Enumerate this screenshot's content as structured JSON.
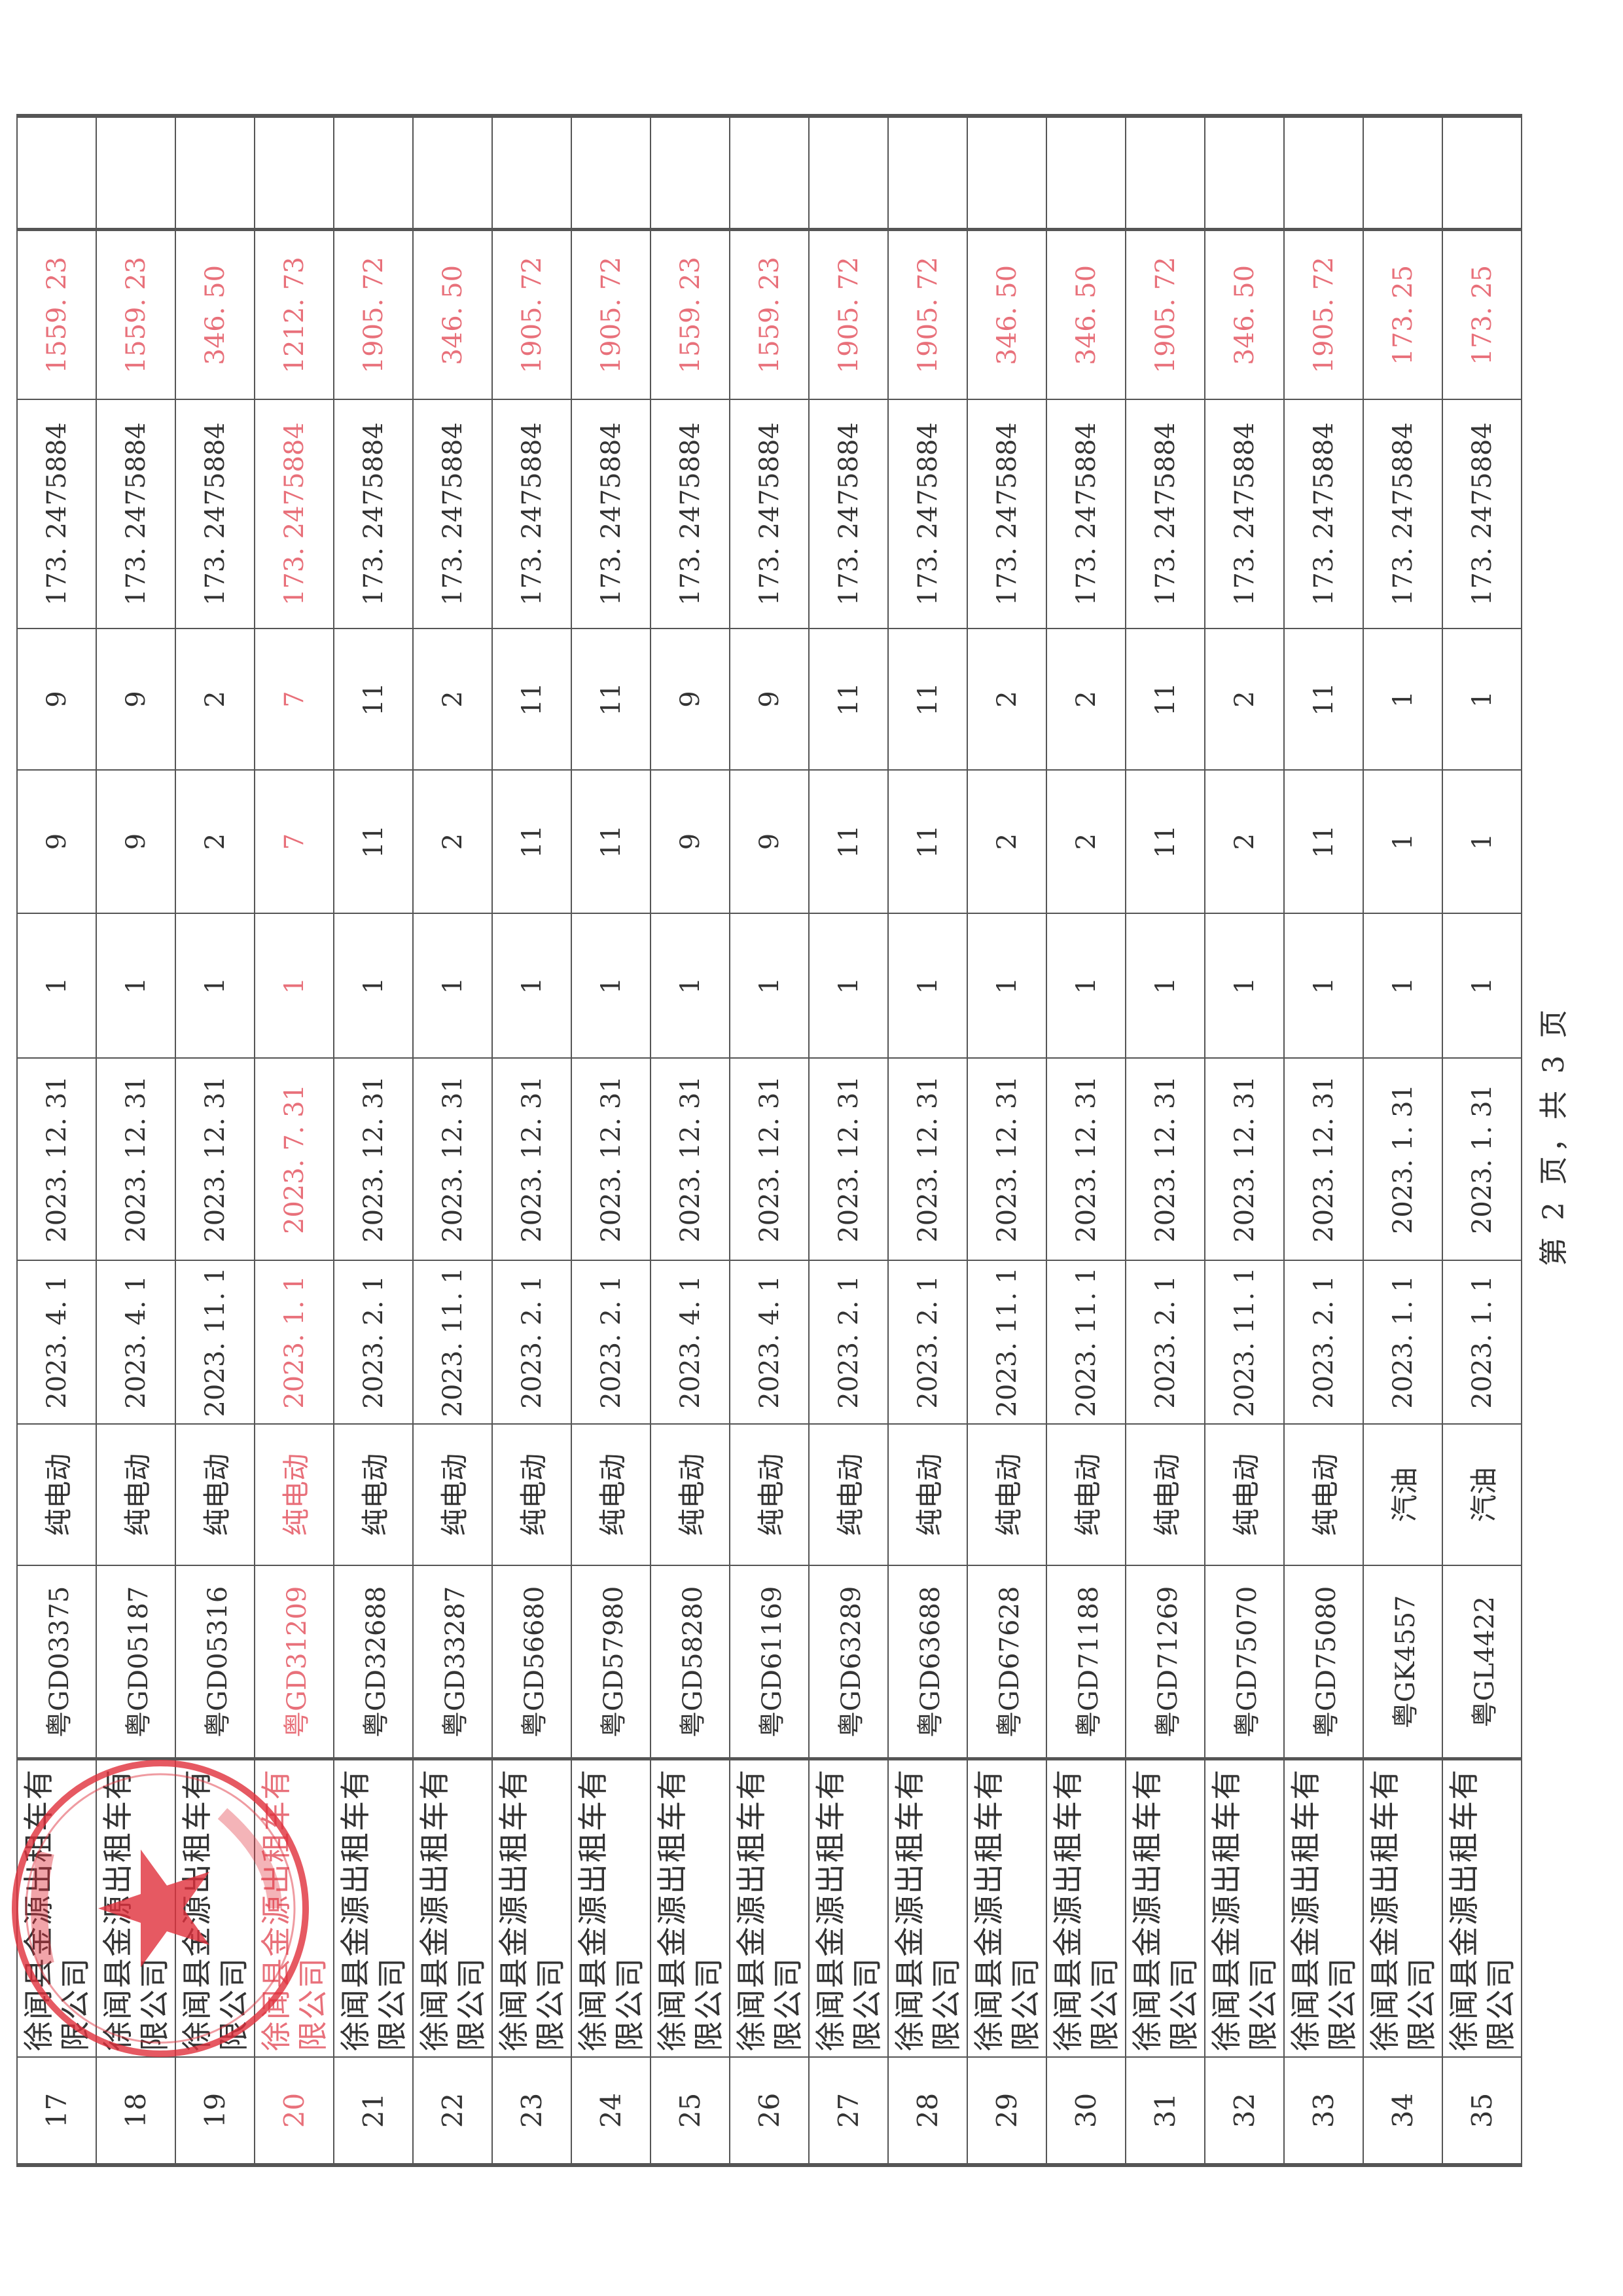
{
  "table": {
    "rows": [
      {
        "no": "17",
        "company": "徐闻县金源出租车有限公司",
        "plate": "粤GD03375",
        "fuel": "纯电动",
        "start": "2023. 4. 1",
        "end": "2023. 12. 31",
        "c1": "1",
        "c2": "9",
        "c3": "9",
        "rate": "173. 2475884",
        "amount": "1559. 23"
      },
      {
        "no": "18",
        "company": "徐闻县金源出租车有限公司",
        "plate": "粤GD05187",
        "fuel": "纯电动",
        "start": "2023. 4. 1",
        "end": "2023. 12. 31",
        "c1": "1",
        "c2": "9",
        "c3": "9",
        "rate": "173. 2475884",
        "amount": "1559. 23"
      },
      {
        "no": "19",
        "company": "徐闻县金源出租车有限公司",
        "plate": "粤GD05316",
        "fuel": "纯电动",
        "start": "2023. 11. 1",
        "end": "2023. 12. 31",
        "c1": "1",
        "c2": "2",
        "c3": "2",
        "rate": "173. 2475884",
        "amount": "346. 50"
      },
      {
        "no": "20",
        "company": "徐闻县金源出租车有限公司",
        "plate": "粤GD31209",
        "fuel": "纯电动",
        "start": "2023. 1. 1",
        "end": "2023. 7. 31",
        "c1": "1",
        "c2": "7",
        "c3": "7",
        "rate": "173. 2475884",
        "amount": "1212. 73",
        "highlight": true
      },
      {
        "no": "21",
        "company": "徐闻县金源出租车有限公司",
        "plate": "粤GD32688",
        "fuel": "纯电动",
        "start": "2023. 2. 1",
        "end": "2023. 12. 31",
        "c1": "1",
        "c2": "11",
        "c3": "11",
        "rate": "173. 2475884",
        "amount": "1905. 72"
      },
      {
        "no": "22",
        "company": "徐闻县金源出租车有限公司",
        "plate": "粤GD33287",
        "fuel": "纯电动",
        "start": "2023. 11. 1",
        "end": "2023. 12. 31",
        "c1": "1",
        "c2": "2",
        "c3": "2",
        "rate": "173. 2475884",
        "amount": "346. 50"
      },
      {
        "no": "23",
        "company": "徐闻县金源出租车有限公司",
        "plate": "粤GD56680",
        "fuel": "纯电动",
        "start": "2023. 2. 1",
        "end": "2023. 12. 31",
        "c1": "1",
        "c2": "11",
        "c3": "11",
        "rate": "173. 2475884",
        "amount": "1905. 72"
      },
      {
        "no": "24",
        "company": "徐闻县金源出租车有限公司",
        "plate": "粤GD57980",
        "fuel": "纯电动",
        "start": "2023. 2. 1",
        "end": "2023. 12. 31",
        "c1": "1",
        "c2": "11",
        "c3": "11",
        "rate": "173. 2475884",
        "amount": "1905. 72"
      },
      {
        "no": "25",
        "company": "徐闻县金源出租车有限公司",
        "plate": "粤GD58280",
        "fuel": "纯电动",
        "start": "2023. 4. 1",
        "end": "2023. 12. 31",
        "c1": "1",
        "c2": "9",
        "c3": "9",
        "rate": "173. 2475884",
        "amount": "1559. 23"
      },
      {
        "no": "26",
        "company": "徐闻县金源出租车有限公司",
        "plate": "粤GD61169",
        "fuel": "纯电动",
        "start": "2023. 4. 1",
        "end": "2023. 12. 31",
        "c1": "1",
        "c2": "9",
        "c3": "9",
        "rate": "173. 2475884",
        "amount": "1559. 23"
      },
      {
        "no": "27",
        "company": "徐闻县金源出租车有限公司",
        "plate": "粤GD63289",
        "fuel": "纯电动",
        "start": "2023. 2. 1",
        "end": "2023. 12. 31",
        "c1": "1",
        "c2": "11",
        "c3": "11",
        "rate": "173. 2475884",
        "amount": "1905. 72"
      },
      {
        "no": "28",
        "company": "徐闻县金源出租车有限公司",
        "plate": "粤GD63688",
        "fuel": "纯电动",
        "start": "2023. 2. 1",
        "end": "2023. 12. 31",
        "c1": "1",
        "c2": "11",
        "c3": "11",
        "rate": "173. 2475884",
        "amount": "1905. 72"
      },
      {
        "no": "29",
        "company": "徐闻县金源出租车有限公司",
        "plate": "粤GD67628",
        "fuel": "纯电动",
        "start": "2023. 11. 1",
        "end": "2023. 12. 31",
        "c1": "1",
        "c2": "2",
        "c3": "2",
        "rate": "173. 2475884",
        "amount": "346. 50"
      },
      {
        "no": "30",
        "company": "徐闻县金源出租车有限公司",
        "plate": "粤GD71188",
        "fuel": "纯电动",
        "start": "2023. 11. 1",
        "end": "2023. 12. 31",
        "c1": "1",
        "c2": "2",
        "c3": "2",
        "rate": "173. 2475884",
        "amount": "346. 50"
      },
      {
        "no": "31",
        "company": "徐闻县金源出租车有限公司",
        "plate": "粤GD71269",
        "fuel": "纯电动",
        "start": "2023. 2. 1",
        "end": "2023. 12. 31",
        "c1": "1",
        "c2": "11",
        "c3": "11",
        "rate": "173. 2475884",
        "amount": "1905. 72"
      },
      {
        "no": "32",
        "company": "徐闻县金源出租车有限公司",
        "plate": "粤GD75070",
        "fuel": "纯电动",
        "start": "2023. 11. 1",
        "end": "2023. 12. 31",
        "c1": "1",
        "c2": "2",
        "c3": "2",
        "rate": "173. 2475884",
        "amount": "346. 50"
      },
      {
        "no": "33",
        "company": "徐闻县金源出租车有限公司",
        "plate": "粤GD75080",
        "fuel": "纯电动",
        "start": "2023. 2. 1",
        "end": "2023. 12. 31",
        "c1": "1",
        "c2": "11",
        "c3": "11",
        "rate": "173. 2475884",
        "amount": "1905. 72"
      },
      {
        "no": "34",
        "company": "徐闻县金源出租车有限公司",
        "plate": "粤GK4557",
        "fuel": "汽油",
        "start": "2023. 1. 1",
        "end": "2023. 1. 31",
        "c1": "1",
        "c2": "1",
        "c3": "1",
        "rate": "173. 2475884",
        "amount": "173. 25"
      },
      {
        "no": "35",
        "company": "徐闻县金源出租车有限公司",
        "plate": "粤GL4422",
        "fuel": "汽油",
        "start": "2023. 1. 1",
        "end": "2023. 1. 31",
        "c1": "1",
        "c2": "1",
        "c3": "1",
        "rate": "173. 2475884",
        "amount": "173. 25"
      }
    ]
  },
  "footer": {
    "page_label": "第 2 页，共 3 页"
  },
  "colors": {
    "highlight": "#e8707a",
    "stamp": "#e0303c",
    "rule": "#555555"
  },
  "stamp": {
    "icon": "official-seal-star-icon"
  }
}
